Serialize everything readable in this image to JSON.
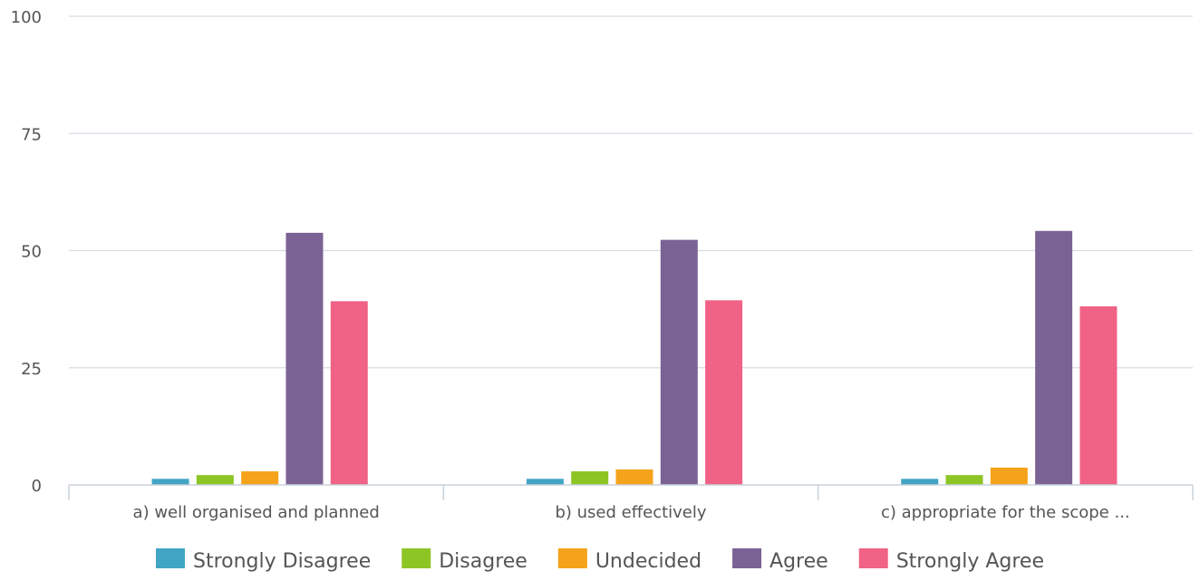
{
  "chart_data": {
    "type": "bar",
    "categories": [
      "a) well organised and planned",
      "b) used effectively",
      "c) appropriate for the scope ..."
    ],
    "series": [
      {
        "name": "Strongly Disagree",
        "color": "#41a5c5",
        "values": [
          1.3,
          1.3,
          1.3
        ]
      },
      {
        "name": "Disagree",
        "color": "#8dc525",
        "values": [
          2.1,
          2.9,
          2.1
        ]
      },
      {
        "name": "Undecided",
        "color": "#f5a31b",
        "values": [
          2.9,
          3.3,
          3.7
        ]
      },
      {
        "name": "Agree",
        "color": "#7b6294",
        "values": [
          53.8,
          52.3,
          54.2
        ]
      },
      {
        "name": "Strongly Agree",
        "color": "#f06286",
        "values": [
          39.2,
          39.4,
          38.1
        ]
      }
    ],
    "ylim": [
      0,
      100
    ],
    "yticks": [
      "0",
      "25",
      "50",
      "75",
      "100"
    ],
    "grid": true,
    "legend_position": "bottom"
  }
}
